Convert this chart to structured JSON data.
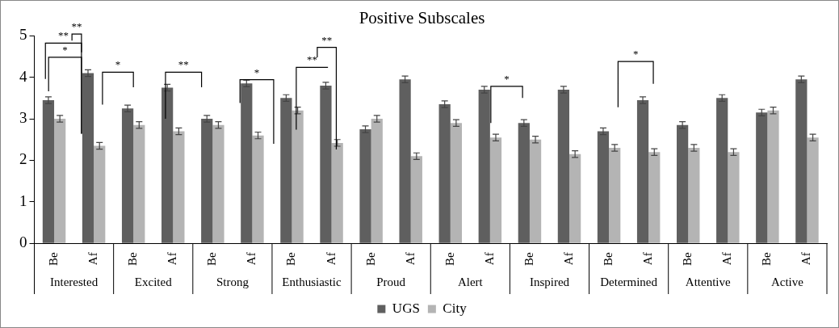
{
  "chart_data": {
    "type": "bar",
    "title": "Positive Subscales",
    "categories": [
      "Be",
      "Af",
      "Be",
      "Af",
      "Be",
      "Af",
      "Be",
      "Af",
      "Be",
      "Af",
      "Be",
      "Af",
      "Be",
      "Af",
      "Be",
      "Af",
      "Be",
      "Af",
      "Be",
      "Af"
    ],
    "series": [
      {
        "name": "UGS",
        "color": "#5f5f5f",
        "values": [
          3.45,
          4.1,
          3.25,
          3.75,
          3.0,
          3.85,
          3.5,
          3.8,
          2.75,
          3.95,
          3.35,
          3.7,
          2.9,
          3.7,
          2.7,
          3.45,
          2.85,
          3.5,
          3.15,
          3.95
        ],
        "errors": [
          0.08,
          0.08,
          0.08,
          0.08,
          0.08,
          0.08,
          0.08,
          0.08,
          0.08,
          0.08,
          0.08,
          0.08,
          0.08,
          0.08,
          0.08,
          0.08,
          0.08,
          0.08,
          0.08,
          0.08
        ]
      },
      {
        "name": "City",
        "color": "#b4b4b4",
        "values": [
          3.0,
          2.35,
          2.85,
          2.7,
          2.85,
          2.6,
          3.2,
          2.42,
          3.0,
          2.1,
          2.9,
          2.55,
          2.5,
          2.15,
          2.3,
          2.2,
          2.3,
          2.2,
          3.2,
          2.55
        ],
        "errors": [
          0.08,
          0.08,
          0.08,
          0.08,
          0.08,
          0.08,
          0.08,
          0.08,
          0.08,
          0.08,
          0.08,
          0.08,
          0.08,
          0.08,
          0.08,
          0.08,
          0.08,
          0.08,
          0.08,
          0.08
        ]
      }
    ],
    "ylim": [
      0,
      5
    ],
    "yticks": [
      0,
      1,
      2,
      3,
      4,
      5
    ],
    "grid": false,
    "legend": "bottom",
    "annotations": [
      "Interested",
      "Excited",
      "Strong",
      "Enthusiastic",
      "Proud",
      "Alert",
      "Inspired",
      "Determined",
      "Attentive",
      "Active",
      "**",
      "*",
      "**",
      "*",
      "**",
      "*",
      "**",
      "**",
      "*",
      "*"
    ]
  }
}
